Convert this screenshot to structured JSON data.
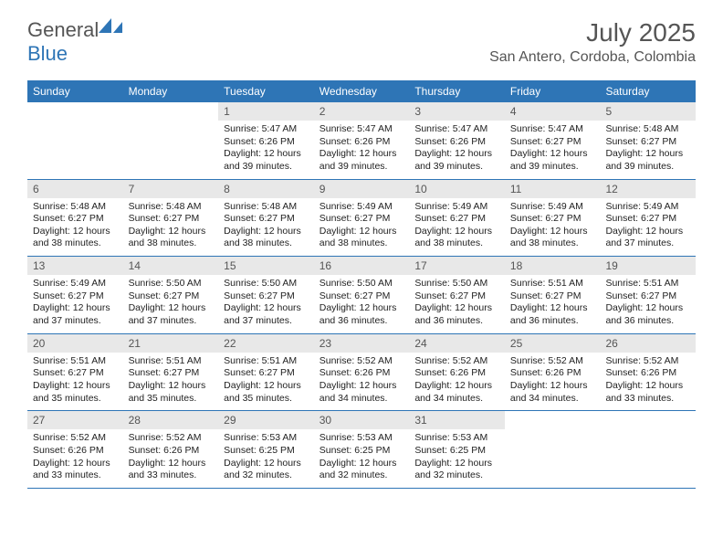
{
  "logo": {
    "text1": "General",
    "text2": "Blue"
  },
  "title": "July 2025",
  "location": "San Antero, Cordoba, Colombia",
  "colors": {
    "header_bg": "#2e75b6",
    "header_text": "#ffffff",
    "daynum_bg": "#e8e8e8",
    "border": "#2e75b6",
    "body_text": "#222222",
    "title_text": "#555555"
  },
  "day_names": [
    "Sunday",
    "Monday",
    "Tuesday",
    "Wednesday",
    "Thursday",
    "Friday",
    "Saturday"
  ],
  "weeks": [
    [
      null,
      null,
      {
        "n": "1",
        "sr": "5:47 AM",
        "ss": "6:26 PM",
        "dl": "12 hours and 39 minutes."
      },
      {
        "n": "2",
        "sr": "5:47 AM",
        "ss": "6:26 PM",
        "dl": "12 hours and 39 minutes."
      },
      {
        "n": "3",
        "sr": "5:47 AM",
        "ss": "6:26 PM",
        "dl": "12 hours and 39 minutes."
      },
      {
        "n": "4",
        "sr": "5:47 AM",
        "ss": "6:27 PM",
        "dl": "12 hours and 39 minutes."
      },
      {
        "n": "5",
        "sr": "5:48 AM",
        "ss": "6:27 PM",
        "dl": "12 hours and 39 minutes."
      }
    ],
    [
      {
        "n": "6",
        "sr": "5:48 AM",
        "ss": "6:27 PM",
        "dl": "12 hours and 38 minutes."
      },
      {
        "n": "7",
        "sr": "5:48 AM",
        "ss": "6:27 PM",
        "dl": "12 hours and 38 minutes."
      },
      {
        "n": "8",
        "sr": "5:48 AM",
        "ss": "6:27 PM",
        "dl": "12 hours and 38 minutes."
      },
      {
        "n": "9",
        "sr": "5:49 AM",
        "ss": "6:27 PM",
        "dl": "12 hours and 38 minutes."
      },
      {
        "n": "10",
        "sr": "5:49 AM",
        "ss": "6:27 PM",
        "dl": "12 hours and 38 minutes."
      },
      {
        "n": "11",
        "sr": "5:49 AM",
        "ss": "6:27 PM",
        "dl": "12 hours and 38 minutes."
      },
      {
        "n": "12",
        "sr": "5:49 AM",
        "ss": "6:27 PM",
        "dl": "12 hours and 37 minutes."
      }
    ],
    [
      {
        "n": "13",
        "sr": "5:49 AM",
        "ss": "6:27 PM",
        "dl": "12 hours and 37 minutes."
      },
      {
        "n": "14",
        "sr": "5:50 AM",
        "ss": "6:27 PM",
        "dl": "12 hours and 37 minutes."
      },
      {
        "n": "15",
        "sr": "5:50 AM",
        "ss": "6:27 PM",
        "dl": "12 hours and 37 minutes."
      },
      {
        "n": "16",
        "sr": "5:50 AM",
        "ss": "6:27 PM",
        "dl": "12 hours and 36 minutes."
      },
      {
        "n": "17",
        "sr": "5:50 AM",
        "ss": "6:27 PM",
        "dl": "12 hours and 36 minutes."
      },
      {
        "n": "18",
        "sr": "5:51 AM",
        "ss": "6:27 PM",
        "dl": "12 hours and 36 minutes."
      },
      {
        "n": "19",
        "sr": "5:51 AM",
        "ss": "6:27 PM",
        "dl": "12 hours and 36 minutes."
      }
    ],
    [
      {
        "n": "20",
        "sr": "5:51 AM",
        "ss": "6:27 PM",
        "dl": "12 hours and 35 minutes."
      },
      {
        "n": "21",
        "sr": "5:51 AM",
        "ss": "6:27 PM",
        "dl": "12 hours and 35 minutes."
      },
      {
        "n": "22",
        "sr": "5:51 AM",
        "ss": "6:27 PM",
        "dl": "12 hours and 35 minutes."
      },
      {
        "n": "23",
        "sr": "5:52 AM",
        "ss": "6:26 PM",
        "dl": "12 hours and 34 minutes."
      },
      {
        "n": "24",
        "sr": "5:52 AM",
        "ss": "6:26 PM",
        "dl": "12 hours and 34 minutes."
      },
      {
        "n": "25",
        "sr": "5:52 AM",
        "ss": "6:26 PM",
        "dl": "12 hours and 34 minutes."
      },
      {
        "n": "26",
        "sr": "5:52 AM",
        "ss": "6:26 PM",
        "dl": "12 hours and 33 minutes."
      }
    ],
    [
      {
        "n": "27",
        "sr": "5:52 AM",
        "ss": "6:26 PM",
        "dl": "12 hours and 33 minutes."
      },
      {
        "n": "28",
        "sr": "5:52 AM",
        "ss": "6:26 PM",
        "dl": "12 hours and 33 minutes."
      },
      {
        "n": "29",
        "sr": "5:53 AM",
        "ss": "6:25 PM",
        "dl": "12 hours and 32 minutes."
      },
      {
        "n": "30",
        "sr": "5:53 AM",
        "ss": "6:25 PM",
        "dl": "12 hours and 32 minutes."
      },
      {
        "n": "31",
        "sr": "5:53 AM",
        "ss": "6:25 PM",
        "dl": "12 hours and 32 minutes."
      },
      null,
      null
    ]
  ],
  "labels": {
    "sunrise": "Sunrise:",
    "sunset": "Sunset:",
    "daylight": "Daylight:"
  }
}
